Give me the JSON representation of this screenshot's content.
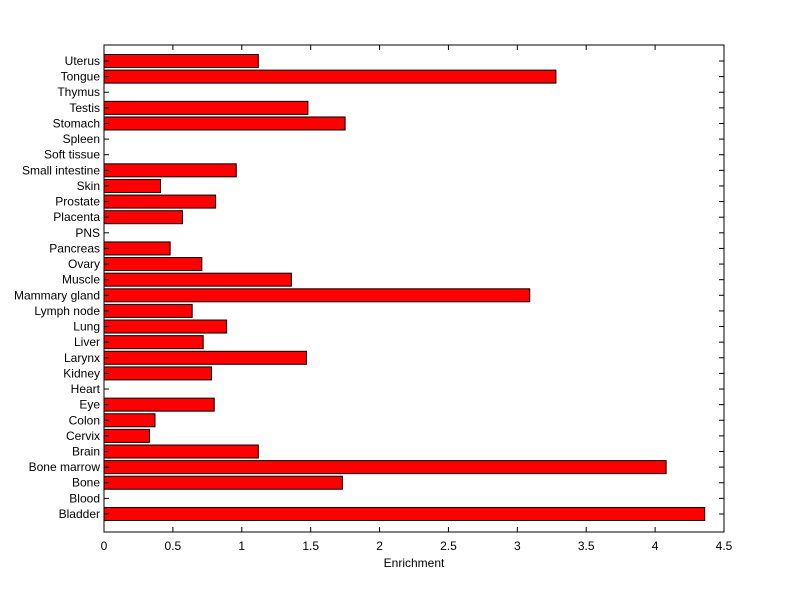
{
  "chart_data": {
    "type": "bar",
    "orientation": "horizontal",
    "title": "",
    "xlabel": "Enrichment",
    "ylabel": "",
    "xlim": [
      0,
      4.5
    ],
    "xticks": [
      "0",
      "0.5",
      "1",
      "1.5",
      "2",
      "2.5",
      "3",
      "3.5",
      "4",
      "4.5"
    ],
    "grid": false,
    "legend": "none",
    "bar_color": "#ff0000",
    "categories": [
      "Uterus",
      "Tongue",
      "Thymus",
      "Testis",
      "Stomach",
      "Spleen",
      "Soft tissue",
      "Small intestine",
      "Skin",
      "Prostate",
      "Placenta",
      "PNS",
      "Pancreas",
      "Ovary",
      "Muscle",
      "Mammary gland",
      "Lymph node",
      "Lung",
      "Liver",
      "Larynx",
      "Kidney",
      "Heart",
      "Eye",
      "Colon",
      "Cervix",
      "Brain",
      "Bone marrow",
      "Bone",
      "Blood",
      "Bladder"
    ],
    "values": [
      1.12,
      3.28,
      0,
      1.48,
      1.75,
      0,
      0,
      0.96,
      0.41,
      0.81,
      0.57,
      0,
      0.48,
      0.71,
      1.36,
      3.09,
      0.64,
      0.89,
      0.72,
      1.47,
      0.78,
      0,
      0.8,
      0.37,
      0.33,
      1.12,
      4.08,
      1.73,
      0,
      4.36
    ]
  }
}
